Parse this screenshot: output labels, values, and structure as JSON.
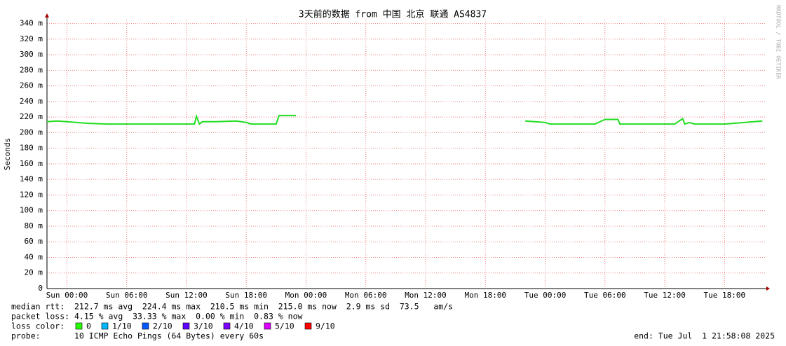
{
  "chart_data": {
    "type": "line",
    "title": "3天前的数据 from 中国 北京 联通 AS4837",
    "y_label": "Seconds",
    "watermark": "RRDTOOL / TOBI OETIKER",
    "xlim": [
      -2,
      70.2
    ],
    "xticks": [
      {
        "value": 0,
        "label": "Sun 00:00"
      },
      {
        "value": 6,
        "label": "Sun 06:00"
      },
      {
        "value": 12,
        "label": "Sun 12:00"
      },
      {
        "value": 18,
        "label": "Sun 18:00"
      },
      {
        "value": 24,
        "label": "Mon 00:00"
      },
      {
        "value": 30,
        "label": "Mon 06:00"
      },
      {
        "value": 36,
        "label": "Mon 12:00"
      },
      {
        "value": 42,
        "label": "Mon 18:00"
      },
      {
        "value": 48,
        "label": "Tue 00:00"
      },
      {
        "value": 54,
        "label": "Tue 06:00"
      },
      {
        "value": 60,
        "label": "Tue 12:00"
      },
      {
        "value": 66,
        "label": "Tue 18:00"
      }
    ],
    "ylim": [
      0,
      0.345
    ],
    "yticks": [
      0,
      {
        "value": 0.02,
        "label": "20 m"
      },
      {
        "value": 0.04,
        "label": "40 m"
      },
      {
        "value": 0.06,
        "label": "60 m"
      },
      {
        "value": 0.08,
        "label": "80 m"
      },
      {
        "value": 0.1,
        "label": "100 m"
      },
      {
        "value": 0.12,
        "label": "120 m"
      },
      {
        "value": 0.14,
        "label": "140 m"
      },
      {
        "value": 0.16,
        "label": "160 m"
      },
      {
        "value": 0.18,
        "label": "180 m"
      },
      {
        "value": 0.2,
        "label": "200 m"
      },
      {
        "value": 0.22,
        "label": "220 m"
      },
      {
        "value": 0.24,
        "label": "240 m"
      },
      {
        "value": 0.26,
        "label": "260 m"
      },
      {
        "value": 0.28,
        "label": "280 m"
      },
      {
        "value": 0.3,
        "label": "300 m"
      },
      {
        "value": 0.32,
        "label": "320 m"
      },
      {
        "value": 0.34,
        "label": "340 m"
      }
    ],
    "grid": true,
    "x": [
      -2,
      -1,
      0,
      1,
      2,
      4,
      6,
      8,
      10,
      12,
      12.8,
      13,
      13.3,
      13.6,
      15,
      17,
      18,
      18.5,
      20,
      21,
      21.3,
      23,
      25,
      46,
      47,
      48,
      48.5,
      50,
      52,
      53,
      54,
      55.3,
      55.5,
      57,
      59,
      61,
      61.8,
      62,
      62.5,
      63,
      64,
      66,
      68,
      69.8
    ],
    "series": [
      {
        "color": "#22dd22",
        "values": [
          0.214,
          0.215,
          0.214,
          0.213,
          0.212,
          0.211,
          0.211,
          0.211,
          0.211,
          0.211,
          0.211,
          0.221,
          0.211,
          0.214,
          0.214,
          0.215,
          0.213,
          0.211,
          0.211,
          0.211,
          0.222,
          0.222,
          null,
          0.215,
          0.214,
          0.213,
          0.211,
          0.211,
          0.211,
          0.211,
          0.217,
          0.217,
          0.211,
          0.211,
          0.211,
          0.211,
          0.218,
          0.211,
          0.213,
          0.211,
          0.211,
          0.211,
          0.213,
          0.215
        ]
      }
    ],
    "footer": {
      "median_rtt": "median rtt:  212.7 ms avg  224.4 ms max  210.5 ms min  215.0 ms now  2.9 ms sd  73.5   am/s",
      "packet_loss": "packet loss: 4.15 % avg  33.33 % max  0.00 % min  0.83 % now",
      "loss_color_label": "loss color:",
      "loss_colors": [
        {
          "label": "0",
          "color": "#26ff00"
        },
        {
          "label": "1/10",
          "color": "#00b8ff"
        },
        {
          "label": "2/10",
          "color": "#0059ff"
        },
        {
          "label": "3/10",
          "color": "#5e00ff"
        },
        {
          "label": "4/10",
          "color": "#7e00ff"
        },
        {
          "label": "5/10",
          "color": "#dd00ff"
        },
        {
          "label": "9/10",
          "color": "#ff0000"
        }
      ],
      "probe": "probe:       10 ICMP Echo Pings (64 Bytes) every 60s",
      "end": "end: Tue Jul  1 21:58:08 2025"
    }
  }
}
